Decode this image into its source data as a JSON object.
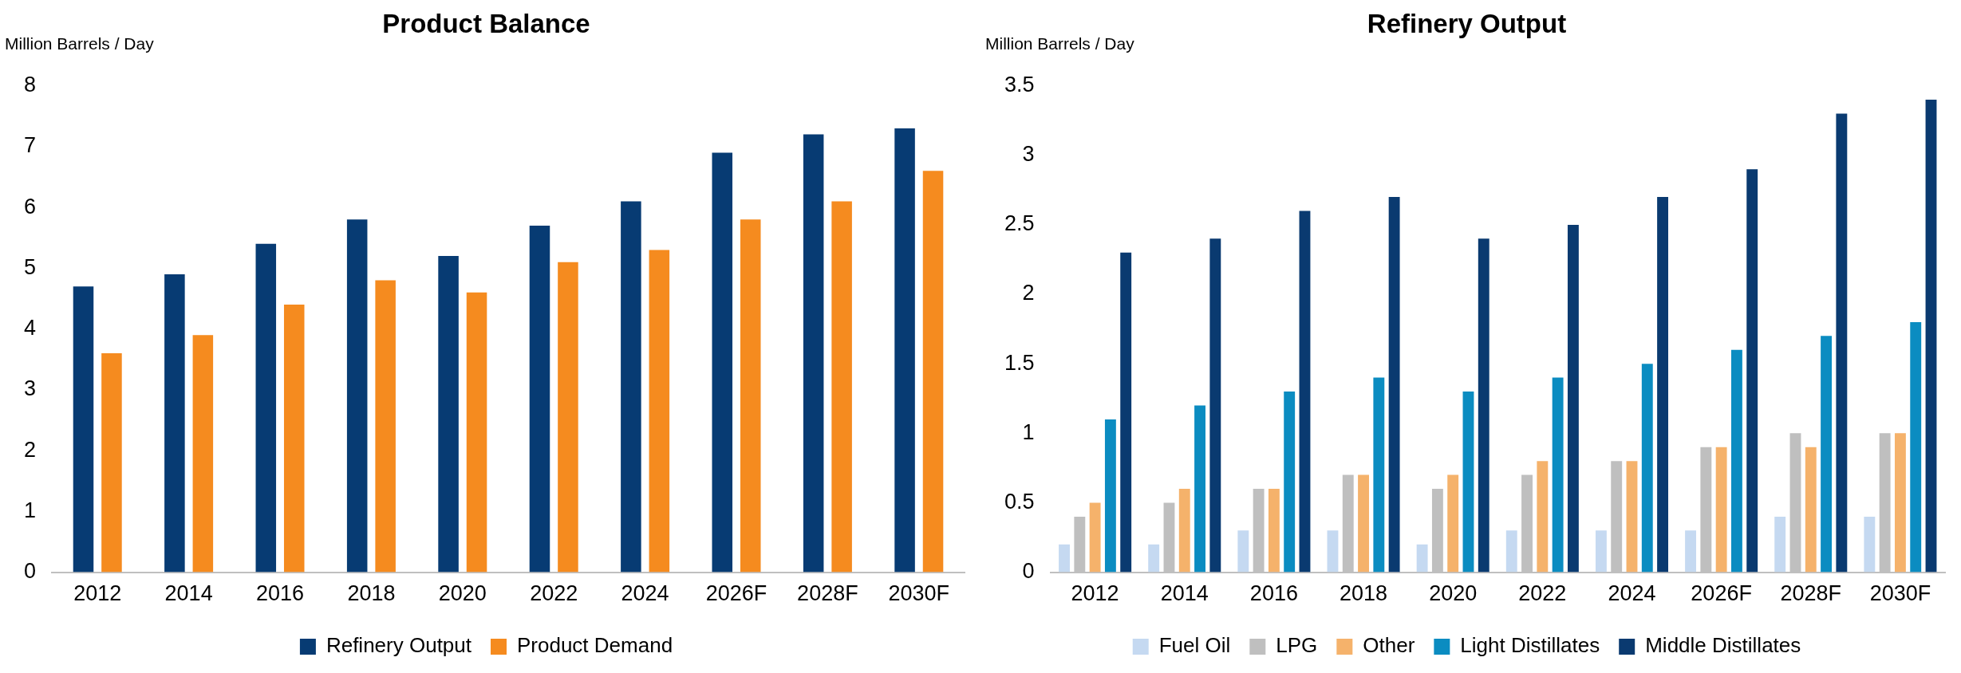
{
  "chart_data": [
    {
      "type": "bar",
      "title": "Product Balance",
      "ylabel": "Million Barrels / Day",
      "categories": [
        "2012",
        "2014",
        "2016",
        "2018",
        "2020",
        "2022",
        "2024",
        "2026F",
        "2028F",
        "2030F"
      ],
      "series": [
        {
          "name": "Refinery Output",
          "color": "#073b73",
          "values": [
            4.7,
            4.9,
            5.4,
            5.8,
            5.2,
            5.7,
            6.1,
            6.9,
            7.2,
            7.3
          ]
        },
        {
          "name": "Product Demand",
          "color": "#f58b1f",
          "values": [
            3.6,
            3.9,
            4.4,
            4.8,
            4.6,
            5.1,
            5.3,
            5.8,
            6.1,
            6.6
          ]
        }
      ],
      "ylim": [
        0,
        8
      ],
      "yticks": [
        0,
        1,
        2,
        3,
        4,
        5,
        6,
        7,
        8
      ],
      "grid": false,
      "legend": "bottom"
    },
    {
      "type": "bar",
      "title": "Refinery Output",
      "ylabel": "Million Barrels / Day",
      "categories": [
        "2012",
        "2014",
        "2016",
        "2018",
        "2020",
        "2022",
        "2024",
        "2026F",
        "2028F",
        "2030F"
      ],
      "series": [
        {
          "name": "Fuel Oil",
          "color": "#c5d9f1",
          "values": [
            0.2,
            0.2,
            0.3,
            0.3,
            0.2,
            0.3,
            0.3,
            0.3,
            0.4,
            0.4
          ]
        },
        {
          "name": "LPG",
          "color": "#bfbfbf",
          "values": [
            0.4,
            0.5,
            0.6,
            0.7,
            0.6,
            0.7,
            0.8,
            0.9,
            1.0,
            1.0
          ]
        },
        {
          "name": "Other",
          "color": "#f5b26b",
          "values": [
            0.5,
            0.6,
            0.6,
            0.7,
            0.7,
            0.8,
            0.8,
            0.9,
            0.9,
            1.0
          ]
        },
        {
          "name": "Light Distillates",
          "color": "#0b8cc1",
          "values": [
            1.1,
            1.2,
            1.3,
            1.4,
            1.3,
            1.4,
            1.5,
            1.6,
            1.7,
            1.8
          ]
        },
        {
          "name": "Middle Distillates",
          "color": "#0a3a70",
          "values": [
            2.3,
            2.4,
            2.6,
            2.7,
            2.4,
            2.5,
            2.7,
            2.9,
            3.3,
            3.4
          ]
        }
      ],
      "ylim": [
        0,
        3.5
      ],
      "yticks": [
        0,
        0.5,
        1,
        1.5,
        2,
        2.5,
        3,
        3.5
      ],
      "grid": false,
      "legend": "bottom"
    }
  ]
}
